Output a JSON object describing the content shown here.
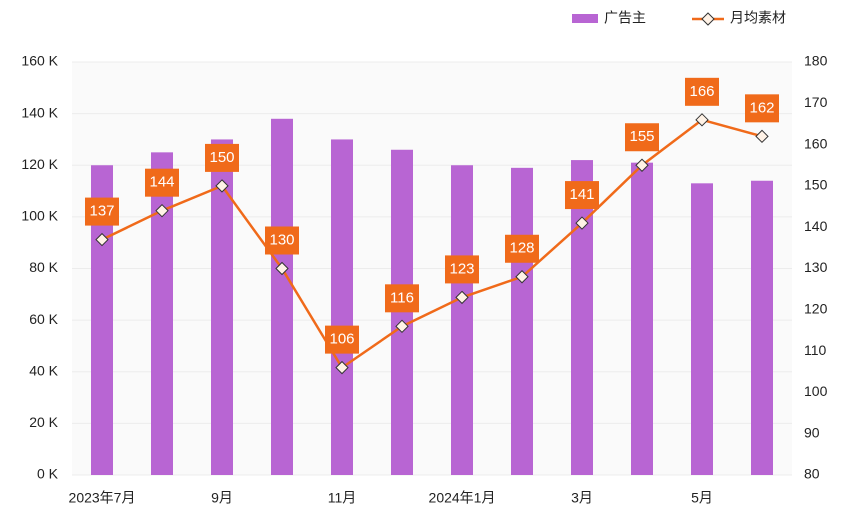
{
  "chart_data": {
    "type": "bar-line",
    "categories": [
      "2023年7月",
      null,
      "9月",
      null,
      "11月",
      null,
      "2024年1月",
      null,
      "3月",
      null,
      "5月",
      null
    ],
    "series": [
      {
        "name": "广告主",
        "type": "bar",
        "color": "#b865d3",
        "values": [
          120,
          125,
          130,
          138,
          130,
          126,
          120,
          119,
          122,
          121,
          113,
          114
        ]
      },
      {
        "name": "月均素材",
        "type": "line",
        "axis": "y2",
        "color": "#f06a1a",
        "values": [
          137,
          144,
          150,
          130,
          106,
          116,
          123,
          128,
          141,
          155,
          166,
          162
        ]
      }
    ],
    "ylim": [
      0,
      160
    ],
    "yticks": [
      {
        "value": 0,
        "label": "0 K"
      },
      {
        "value": 20,
        "label": "20 K"
      },
      {
        "value": 40,
        "label": "40 K"
      },
      {
        "value": 60,
        "label": "60 K"
      },
      {
        "value": 80,
        "label": "80 K"
      },
      {
        "value": 100,
        "label": "100 K"
      },
      {
        "value": 120,
        "label": "120 K"
      },
      {
        "value": 140,
        "label": "140 K"
      },
      {
        "value": 160,
        "label": "160 K"
      }
    ],
    "y2lim": [
      80,
      180
    ],
    "y2ticks": [
      80,
      90,
      100,
      110,
      120,
      130,
      140,
      150,
      160,
      170,
      180
    ],
    "grid": true,
    "legend": "top-right"
  }
}
